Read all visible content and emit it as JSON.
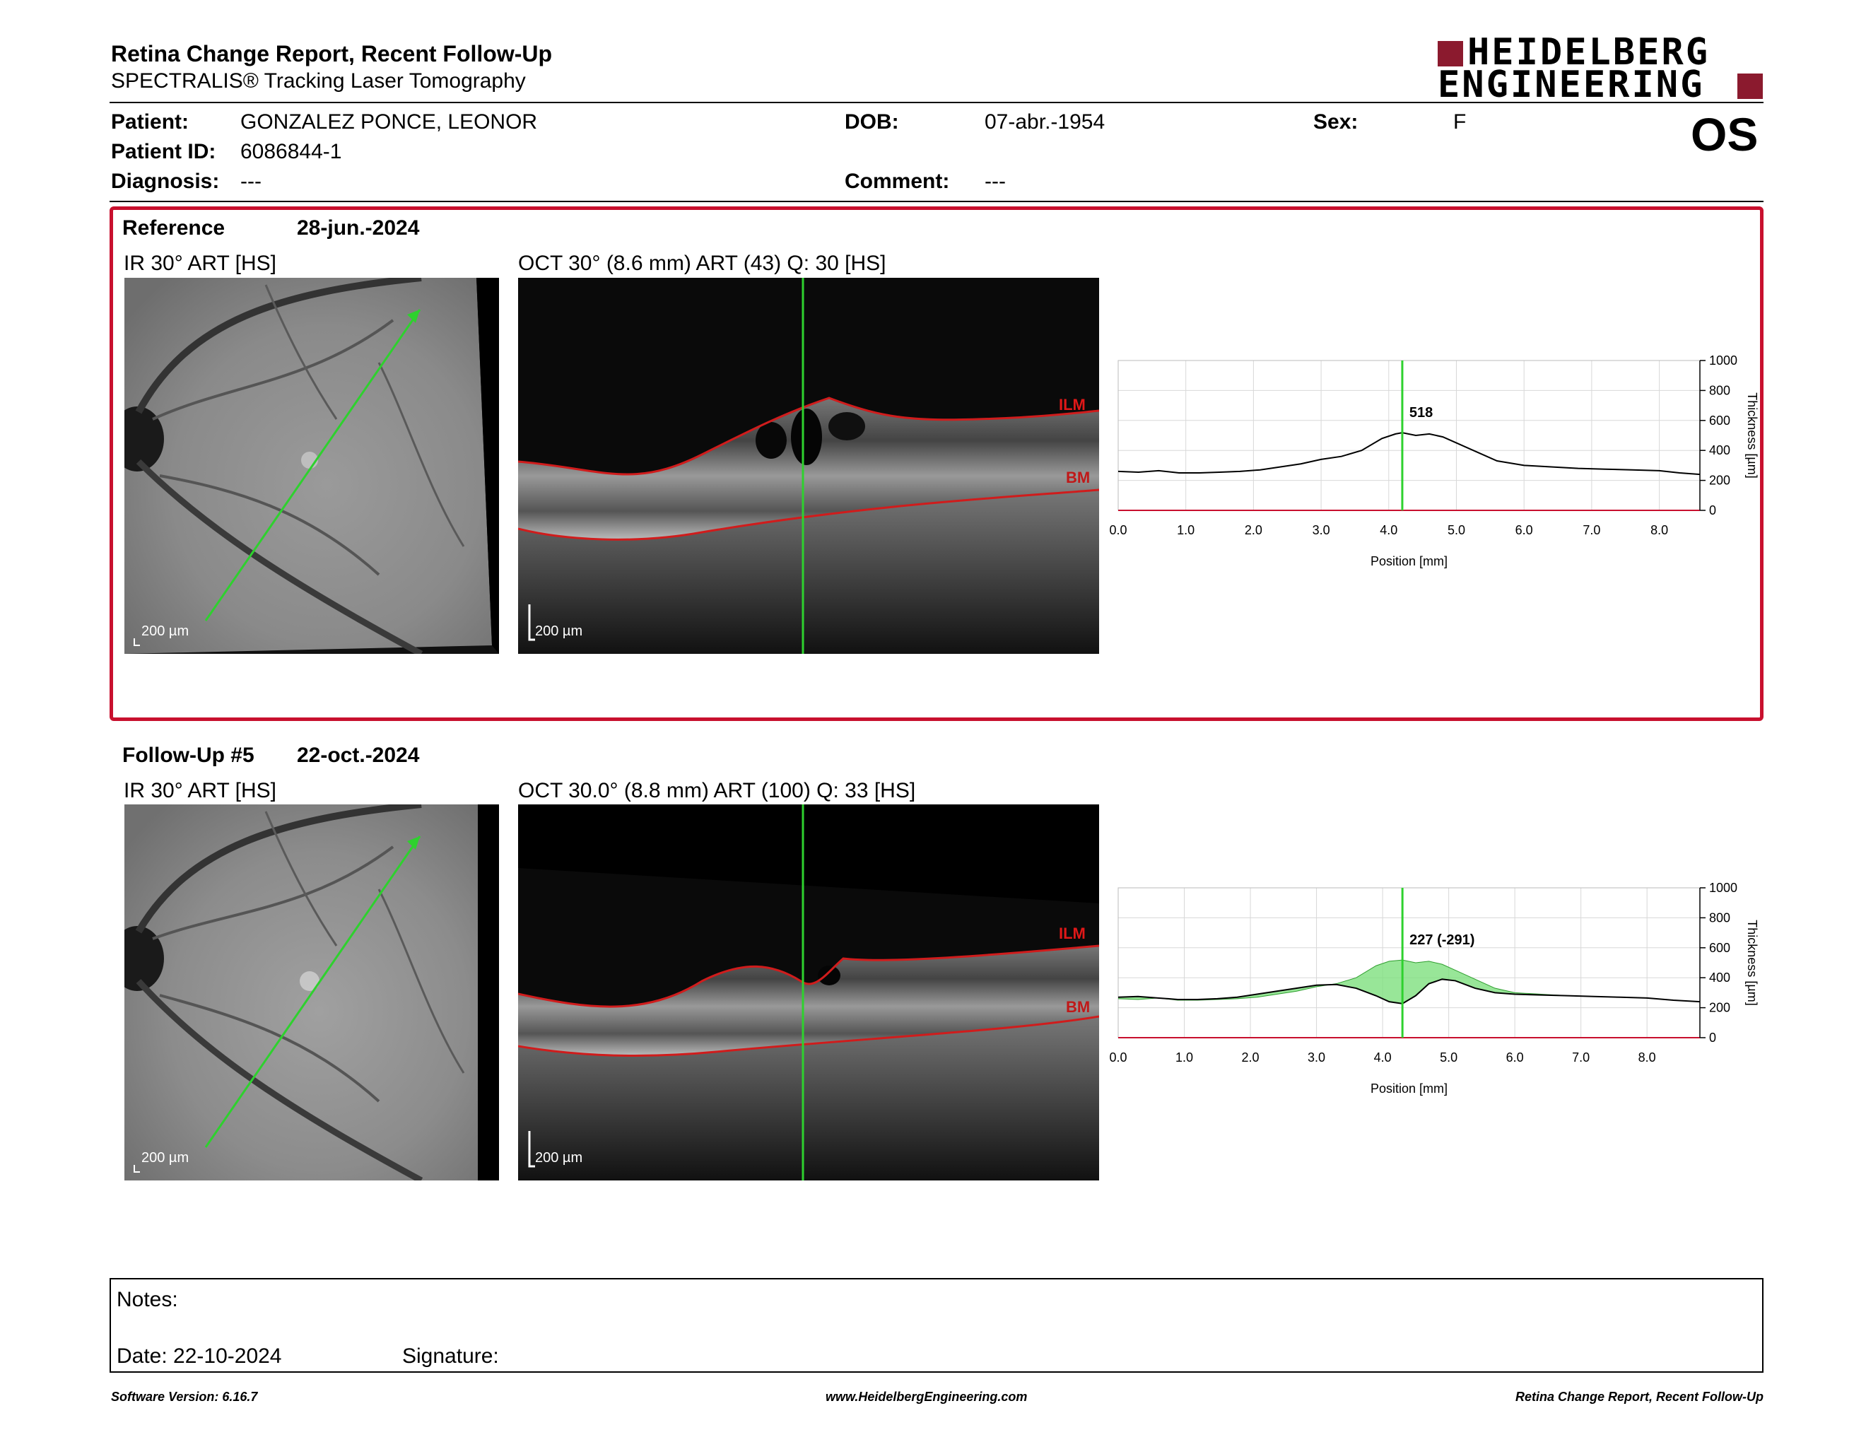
{
  "header": {
    "title": "Retina Change Report, Recent Follow-Up",
    "subtitle": "SPECTRALIS® Tracking Laser Tomography",
    "logo_line1": "HEIDELBERG",
    "logo_line2": "ENGINEERING",
    "brand_color": "#8b1a2e"
  },
  "patient": {
    "patient_label": "Patient:",
    "patient_value": "GONZALEZ PONCE, LEONOR",
    "id_label": "Patient ID:",
    "id_value": "6086844-1",
    "diagnosis_label": "Diagnosis:",
    "diagnosis_value": "---",
    "dob_label": "DOB:",
    "dob_value": "07-abr.-1954",
    "comment_label": "Comment:",
    "comment_value": "---",
    "sex_label": "Sex:",
    "sex_value": "F",
    "eye": "OS"
  },
  "reference": {
    "label": "Reference",
    "date": "28-jun.-2024",
    "ir_label": "IR 30° ART [HS]",
    "oct_label": "OCT 30° (8.6 mm) ART (43) Q: 30 [HS]",
    "scale_ir": "200 µm",
    "scale_oct": "200 µm",
    "ilm": "ILM",
    "bm": "BM"
  },
  "followup": {
    "label": "Follow-Up #5",
    "date": "22-oct.-2024",
    "ir_label": "IR 30° ART [HS]",
    "oct_label": "OCT 30.0° (8.8 mm) ART (100) Q: 33 [HS]",
    "scale_ir": "200 µm",
    "scale_oct": "200 µm",
    "ilm": "ILM",
    "bm": "BM"
  },
  "chart_data": [
    {
      "type": "line",
      "xlabel": "Position [mm]",
      "ylabel": "Thickness [µm]",
      "xlim": [
        0,
        8.6
      ],
      "ylim": [
        0,
        1000
      ],
      "xticks": [
        "0.0",
        "1.0",
        "2.0",
        "3.0",
        "4.0",
        "5.0",
        "6.0",
        "7.0",
        "8.0"
      ],
      "yticks": [
        "0",
        "200",
        "400",
        "600",
        "800",
        "1000"
      ],
      "grid": true,
      "cursor_x": 4.2,
      "cursor_label": "518",
      "x": [
        0,
        0.3,
        0.6,
        0.9,
        1.2,
        1.5,
        1.8,
        2.1,
        2.4,
        2.7,
        3.0,
        3.3,
        3.6,
        3.9,
        4.1,
        4.2,
        4.4,
        4.6,
        4.8,
        5.0,
        5.3,
        5.6,
        6.0,
        6.4,
        6.8,
        7.2,
        7.6,
        8.0,
        8.3,
        8.6
      ],
      "series": [
        {
          "values": [
            260,
            255,
            265,
            250,
            250,
            255,
            260,
            270,
            290,
            310,
            340,
            360,
            400,
            480,
            510,
            518,
            500,
            510,
            490,
            450,
            390,
            330,
            300,
            290,
            280,
            275,
            270,
            265,
            250,
            240
          ]
        }
      ]
    },
    {
      "type": "line",
      "xlabel": "Position [mm]",
      "ylabel": "Thickness [µm]",
      "xlim": [
        0,
        8.8
      ],
      "ylim": [
        0,
        1000
      ],
      "xticks": [
        "0.0",
        "1.0",
        "2.0",
        "3.0",
        "4.0",
        "5.0",
        "6.0",
        "7.0",
        "8.0"
      ],
      "yticks": [
        "0",
        "200",
        "400",
        "600",
        "800",
        "1000"
      ],
      "grid": true,
      "cursor_x": 4.3,
      "cursor_label": "227 (-291)",
      "x": [
        0,
        0.3,
        0.6,
        0.9,
        1.2,
        1.5,
        1.8,
        2.1,
        2.4,
        2.7,
        3.0,
        3.3,
        3.6,
        3.9,
        4.1,
        4.3,
        4.5,
        4.7,
        4.9,
        5.1,
        5.4,
        5.7,
        6.0,
        6.4,
        6.8,
        7.2,
        7.6,
        8.0,
        8.4,
        8.8
      ],
      "series": [
        {
          "values": [
            270,
            275,
            265,
            255,
            255,
            260,
            270,
            290,
            310,
            330,
            350,
            355,
            330,
            280,
            240,
            227,
            280,
            360,
            390,
            380,
            330,
            300,
            290,
            285,
            280,
            275,
            270,
            265,
            250,
            240
          ]
        },
        {
          "values": [
            260,
            255,
            265,
            250,
            250,
            255,
            260,
            270,
            290,
            310,
            340,
            360,
            400,
            480,
            510,
            518,
            500,
            510,
            490,
            450,
            390,
            330,
            300,
            290,
            280,
            275,
            270,
            265,
            250,
            240
          ]
        }
      ]
    }
  ],
  "notes": {
    "notes_label": "Notes:",
    "date_label": "Date: 22-10-2024",
    "signature_label": "Signature:"
  },
  "footer": {
    "left": "Software Version: 6.16.7",
    "center": "www.HeidelbergEngineering.com",
    "right": "Retina Change Report, Recent Follow-Up"
  }
}
